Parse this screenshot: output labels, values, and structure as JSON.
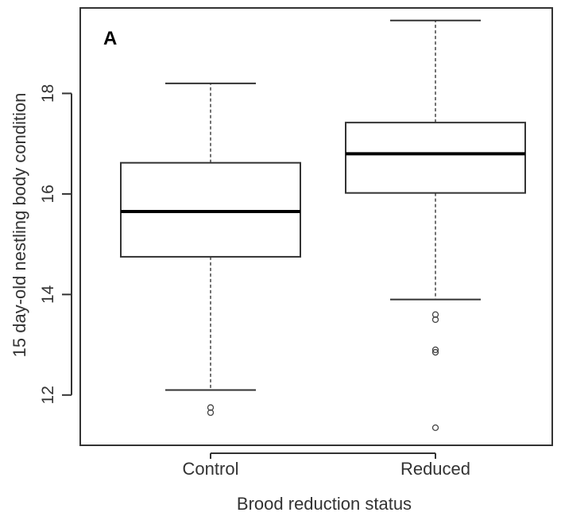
{
  "chart_data": {
    "type": "boxplot",
    "panel_label": "A",
    "title": "",
    "xlabel": "Brood reduction status",
    "ylabel": "15 day-old nestling body condition",
    "ylim": [
      11.0,
      19.7
    ],
    "yticks": [
      12,
      14,
      16,
      18
    ],
    "ytick_labels": [
      "12",
      "14",
      "16",
      "18"
    ],
    "categories": [
      "Control",
      "Reduced"
    ],
    "boxes": [
      {
        "category": "Control",
        "whisker_low": 12.1,
        "q1": 14.75,
        "median": 15.65,
        "q3": 16.62,
        "whisker_high": 18.2,
        "outliers": [
          11.75,
          11.65
        ]
      },
      {
        "category": "Reduced",
        "whisker_low": 13.9,
        "q1": 16.02,
        "median": 16.8,
        "q3": 17.42,
        "whisker_high": 19.45,
        "outliers": [
          13.6,
          13.5,
          12.9,
          12.85,
          11.35
        ]
      }
    ],
    "colors": {
      "box_stroke": "#333333",
      "median": "#000000",
      "whisker": "#444444",
      "outlier": "#444444",
      "frame": "#333333"
    }
  }
}
